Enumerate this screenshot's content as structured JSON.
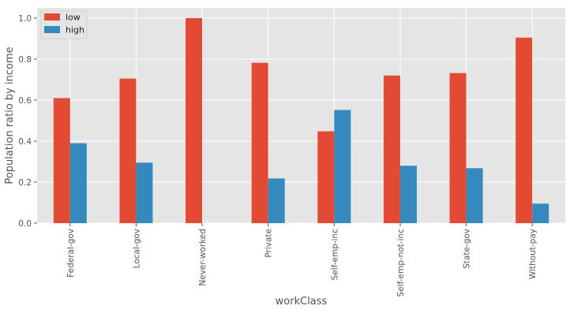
{
  "chart_data": {
    "type": "bar",
    "xlabel": "workClass",
    "ylabel": "Population ratio by income",
    "categories": [
      "Federal-gov",
      "Local-gov",
      "Never-worked",
      "Private",
      "Self-emp-inc",
      "Self-emp-not-inc",
      "State-gov",
      "Without-pay"
    ],
    "series": [
      {
        "name": "low",
        "color": "#E24A33",
        "values": [
          0.61,
          0.705,
          1.0,
          0.782,
          0.448,
          0.72,
          0.732,
          0.905
        ]
      },
      {
        "name": "high",
        "color": "#348ABD",
        "values": [
          0.39,
          0.295,
          0.0,
          0.218,
          0.552,
          0.28,
          0.268,
          0.095
        ]
      }
    ],
    "ylim": [
      0,
      1.05
    ],
    "yticks": [
      0.0,
      0.2,
      0.4,
      0.6,
      0.8,
      1.0
    ],
    "ytick_labels": [
      "0.0",
      "0.2",
      "0.4",
      "0.6",
      "0.8",
      "1.0"
    ],
    "grid": true,
    "legend_position": "top-left",
    "background_color": "#E5E5E5",
    "grid_color": "#FFFFFF"
  }
}
